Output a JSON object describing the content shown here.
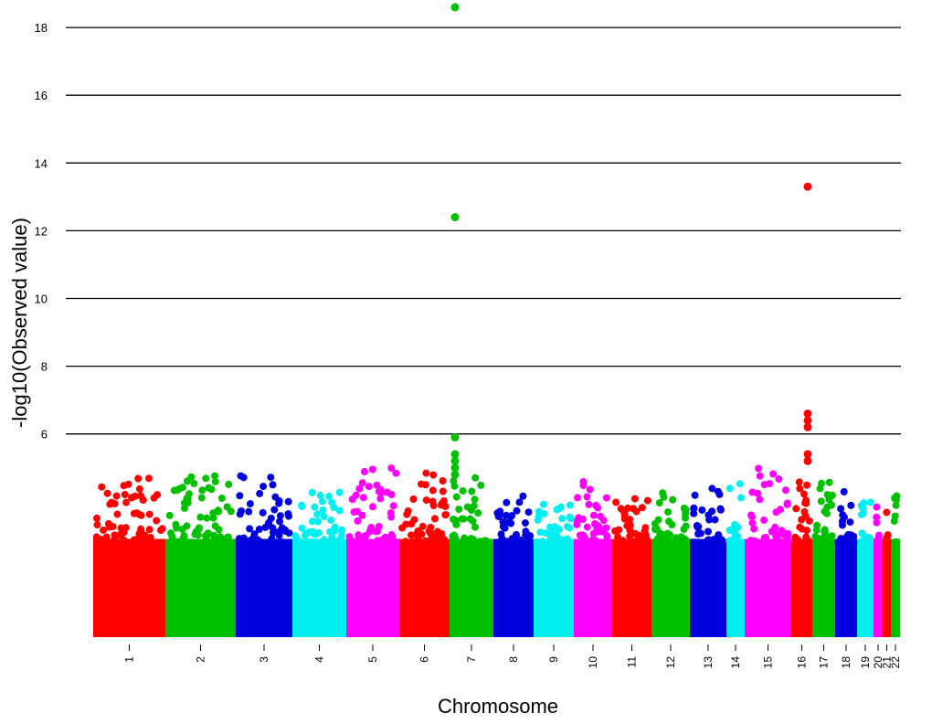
{
  "chart_data": {
    "type": "scatter",
    "title": "",
    "xlabel": "Chromosome",
    "ylabel": "-log10(Observed value)",
    "ylim": [
      0,
      18.6
    ],
    "y_ticks": [
      6,
      8,
      10,
      12,
      14,
      16,
      18
    ],
    "grid": "horizontal lines at y ticks",
    "color_cycle": [
      "#ff0000",
      "#00c000",
      "#0000dd",
      "#00f0f0",
      "#ff00ff"
    ],
    "chromosomes": [
      {
        "name": "1",
        "peak": 4.7
      },
      {
        "name": "2",
        "peak": 4.8
      },
      {
        "name": "3",
        "peak": 4.8
      },
      {
        "name": "4",
        "peak": 4.4
      },
      {
        "name": "5",
        "peak": 5.3
      },
      {
        "name": "6",
        "peak": 5.2
      },
      {
        "name": "7",
        "peak": 18.6
      },
      {
        "name": "8",
        "peak": 4.3
      },
      {
        "name": "9",
        "peak": 4.0
      },
      {
        "name": "10",
        "peak": 4.7
      },
      {
        "name": "11",
        "peak": 4.2
      },
      {
        "name": "12",
        "peak": 4.4
      },
      {
        "name": "13",
        "peak": 4.5
      },
      {
        "name": "14",
        "peak": 4.6
      },
      {
        "name": "15",
        "peak": 5.3
      },
      {
        "name": "16",
        "peak": 13.3
      },
      {
        "name": "17",
        "peak": 5.3
      },
      {
        "name": "18",
        "peak": 4.6
      },
      {
        "name": "19",
        "peak": 4.4
      },
      {
        "name": "20",
        "peak": 4.2
      },
      {
        "name": "21",
        "peak": 4.0
      },
      {
        "name": "22",
        "peak": 4.2
      }
    ],
    "notable_points": [
      {
        "chromosome": "7",
        "y": 18.6
      },
      {
        "chromosome": "7",
        "y": 12.4
      },
      {
        "chromosome": "16",
        "y": 13.3
      },
      {
        "chromosome": "16",
        "y": 6.6
      },
      {
        "chromosome": "16",
        "y": 6.4
      },
      {
        "chromosome": "16",
        "y": 6.2
      },
      {
        "chromosome": "7",
        "y": 5.9
      },
      {
        "chromosome": "7",
        "y": 5.4
      },
      {
        "chromosome": "16",
        "y": 5.4
      },
      {
        "chromosome": "16",
        "y": 5.2
      },
      {
        "chromosome": "7",
        "y": 5.2
      },
      {
        "chromosome": "7",
        "y": 5.0
      },
      {
        "chromosome": "7",
        "y": 4.8
      }
    ]
  }
}
